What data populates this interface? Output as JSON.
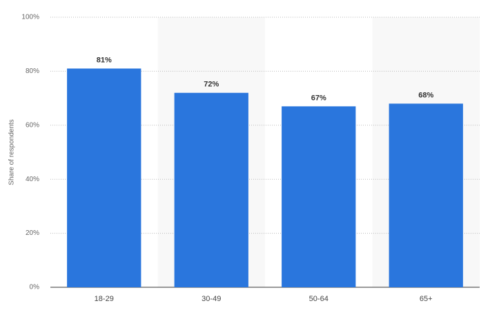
{
  "chart_data": {
    "type": "bar",
    "y_label": "Share of respondents",
    "categories": [
      "18-29",
      "30-49",
      "50-64",
      "65+"
    ],
    "values": [
      81,
      72,
      67,
      68
    ],
    "value_labels": [
      "81%",
      "72%",
      "67%",
      "68%"
    ],
    "color": "#2a76dd",
    "ylim": [
      0,
      100
    ],
    "yticks": [
      {
        "value": 0,
        "label": "0%"
      },
      {
        "value": 20,
        "label": "20%"
      },
      {
        "value": 40,
        "label": "40%"
      },
      {
        "value": 60,
        "label": "60%"
      },
      {
        "value": 80,
        "label": "80%"
      },
      {
        "value": 100,
        "label": "100%"
      }
    ],
    "grid": true
  }
}
